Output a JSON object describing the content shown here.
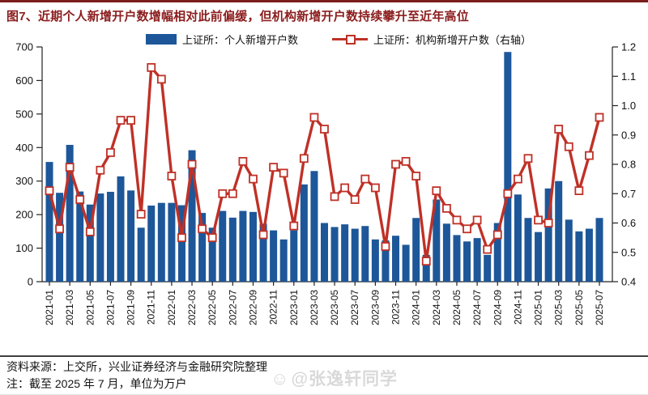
{
  "header": {
    "title": "图7、近期个人新增开户数增幅相对此前偏缓，但机构新增开户数持续攀升至近年高位"
  },
  "colors": {
    "bar": "#1d5799",
    "line": "#bf3127",
    "title": "#8b1d1d",
    "axis": "#222222",
    "watermark": "#d9d9d9"
  },
  "legend": [
    {
      "label": "上证所：个人新增开户数",
      "type": "bar"
    },
    {
      "label": "上证所：机构新增开户数（右轴）",
      "type": "line"
    }
  ],
  "footer": {
    "source": "资料来源：上交所，兴业证券经济与金融研究院整理",
    "note": "注：截至 2025 年 7 月，单位为万户"
  },
  "watermark": {
    "icon": "☺",
    "text": "@张逸轩同学"
  },
  "chart_data": {
    "type": "bar",
    "title": "图7、近期个人新增开户数增幅相对此前偏缓，但机构新增开户数持续攀升至近年高位",
    "categories": [
      "2021-01",
      "2021-02",
      "2021-03",
      "2021-04",
      "2021-05",
      "2021-06",
      "2021-07",
      "2021-08",
      "2021-09",
      "2021-10",
      "2021-11",
      "2021-12",
      "2022-01",
      "2022-02",
      "2022-03",
      "2022-04",
      "2022-05",
      "2022-06",
      "2022-07",
      "2022-08",
      "2022-09",
      "2022-10",
      "2022-11",
      "2022-12",
      "2023-01",
      "2023-02",
      "2023-03",
      "2023-04",
      "2023-05",
      "2023-06",
      "2023-07",
      "2023-08",
      "2023-09",
      "2023-10",
      "2023-11",
      "2023-12",
      "2024-01",
      "2024-02",
      "2024-03",
      "2024-04",
      "2024-05",
      "2024-06",
      "2024-07",
      "2024-08",
      "2024-09",
      "2024-10",
      "2024-11",
      "2024-12",
      "2025-01",
      "2025-02",
      "2025-03",
      "2025-04",
      "2025-05",
      "2025-06",
      "2025-07"
    ],
    "x_tick_step": 2,
    "series": [
      {
        "name": "上证所：个人新增开户数",
        "type": "bar",
        "axis": "left",
        "values": [
          357,
          265,
          408,
          269,
          230,
          263,
          268,
          314,
          272,
          161,
          227,
          235,
          235,
          228,
          392,
          205,
          161,
          211,
          191,
          211,
          208,
          173,
          153,
          126,
          153,
          290,
          330,
          175,
          163,
          171,
          158,
          166,
          126,
          123,
          137,
          110,
          190,
          80,
          245,
          173,
          139,
          120,
          130,
          80,
          175,
          685,
          260,
          190,
          148,
          278,
          300,
          185,
          150,
          158,
          190
        ]
      },
      {
        "name": "上证所：机构新增开户数（右轴）",
        "type": "line",
        "axis": "right",
        "values": [
          0.71,
          0.58,
          0.79,
          0.68,
          0.57,
          0.78,
          0.84,
          0.95,
          0.95,
          0.63,
          1.13,
          1.09,
          0.76,
          0.55,
          0.8,
          0.58,
          0.55,
          0.7,
          0.7,
          0.81,
          0.75,
          0.56,
          0.79,
          0.77,
          0.59,
          0.82,
          0.96,
          0.92,
          0.69,
          0.72,
          0.68,
          0.75,
          0.72,
          0.52,
          0.8,
          0.81,
          0.76,
          0.47,
          0.71,
          0.65,
          0.61,
          0.58,
          0.61,
          0.51,
          0.56,
          0.7,
          0.75,
          0.82,
          0.61,
          0.6,
          0.92,
          0.86,
          0.71,
          0.83,
          0.96
        ]
      }
    ],
    "left_axis": {
      "min": 0,
      "max": 700,
      "step": 100
    },
    "right_axis": {
      "min": 0.4,
      "max": 1.2,
      "step": 0.1
    },
    "grid": false,
    "legend_position": "top",
    "xlabel": "",
    "ylabel": ""
  }
}
